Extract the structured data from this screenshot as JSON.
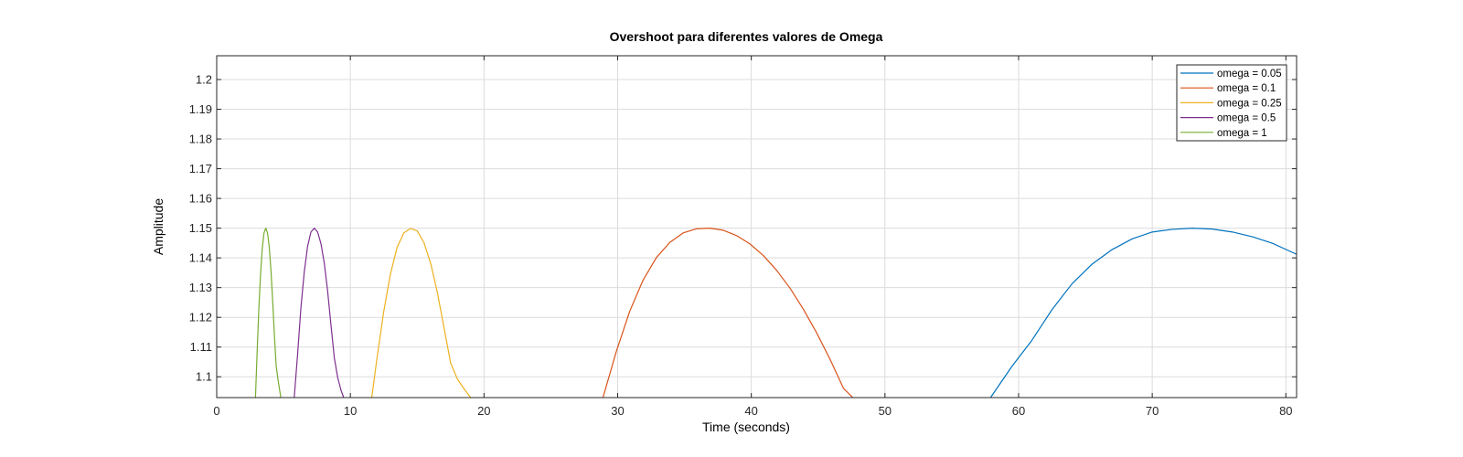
{
  "chart_data": {
    "type": "line",
    "title": "Overshoot para diferentes valores de Omega",
    "xlabel": "Time (seconds)",
    "ylabel": "Amplitude",
    "xlim": [
      0,
      80.8
    ],
    "ylim": [
      1.093,
      1.208
    ],
    "xticks": [
      0,
      10,
      20,
      30,
      40,
      50,
      60,
      70,
      80
    ],
    "xtick_labels": [
      "0",
      "10",
      "20",
      "30",
      "40",
      "50",
      "60",
      "70",
      "80"
    ],
    "yticks": [
      1.1,
      1.11,
      1.12,
      1.13,
      1.14,
      1.15,
      1.16,
      1.17,
      1.18,
      1.19,
      1.2
    ],
    "ytick_labels": [
      "1.1",
      "1.11",
      "1.12",
      "1.13",
      "1.14",
      "1.15",
      "1.16",
      "1.17",
      "1.18",
      "1.19",
      "1.2"
    ],
    "grid": true,
    "legend_position": "top-right",
    "series": [
      {
        "name": "omega = 0.05",
        "color": "#0072BD",
        "x": [
          57.9,
          59.5,
          61.0,
          62.5,
          64.0,
          65.5,
          67.0,
          68.5,
          70.0,
          71.5,
          73.0,
          74.5,
          76.0,
          77.5,
          79.0,
          80.8
        ],
        "y": [
          1.093,
          1.1035,
          1.1123,
          1.1226,
          1.1313,
          1.1379,
          1.1428,
          1.1464,
          1.1487,
          1.1496,
          1.15,
          1.1497,
          1.1487,
          1.1471,
          1.1449,
          1.1412
        ]
      },
      {
        "name": "omega = 0.1",
        "color": "#D95319",
        "x": [
          28.9,
          29.9,
          30.9,
          31.9,
          32.9,
          33.9,
          34.9,
          35.9,
          36.9,
          37.9,
          38.9,
          39.9,
          40.9,
          41.9,
          42.9,
          43.9,
          44.9,
          45.9,
          46.9,
          47.6
        ],
        "y": [
          1.093,
          1.1085,
          1.122,
          1.1325,
          1.1401,
          1.1452,
          1.1484,
          1.1498,
          1.15,
          1.1493,
          1.1475,
          1.1447,
          1.1408,
          1.1358,
          1.1298,
          1.1227,
          1.1147,
          1.1058,
          1.0961,
          1.093
        ]
      },
      {
        "name": "omega = 0.25",
        "color": "#EDB120",
        "x": [
          11.6,
          12.0,
          12.5,
          13.0,
          13.5,
          14.0,
          14.5,
          15.0,
          15.5,
          16.0,
          16.5,
          17.0,
          17.5,
          18.0,
          18.5,
          19.0
        ],
        "y": [
          1.093,
          1.1065,
          1.122,
          1.1346,
          1.1436,
          1.1484,
          1.1499,
          1.1491,
          1.1452,
          1.1383,
          1.1286,
          1.1167,
          1.1047,
          1.0993,
          1.096,
          1.093
        ]
      },
      {
        "name": "omega = 0.5",
        "color": "#7E2F8E",
        "x": [
          5.8,
          6.05,
          6.3,
          6.55,
          6.8,
          7.05,
          7.3,
          7.55,
          7.8,
          8.05,
          8.3,
          8.55,
          8.8,
          9.05,
          9.3,
          9.5
        ],
        "y": [
          1.093,
          1.1074,
          1.1232,
          1.1352,
          1.1439,
          1.1487,
          1.15,
          1.1487,
          1.1448,
          1.1382,
          1.1288,
          1.1174,
          1.1064,
          1.0998,
          1.0955,
          1.093
        ]
      },
      {
        "name": "omega = 1",
        "color": "#77AC30",
        "x": [
          2.9,
          3.02,
          3.15,
          3.28,
          3.41,
          3.54,
          3.67,
          3.8,
          3.93,
          4.06,
          4.19,
          4.32,
          4.45,
          4.58,
          4.71,
          4.8
        ],
        "y": [
          1.093,
          1.1078,
          1.1227,
          1.1344,
          1.1432,
          1.1484,
          1.15,
          1.1484,
          1.1437,
          1.1358,
          1.1253,
          1.1137,
          1.1037,
          1.0992,
          1.0955,
          1.093
        ]
      }
    ]
  }
}
